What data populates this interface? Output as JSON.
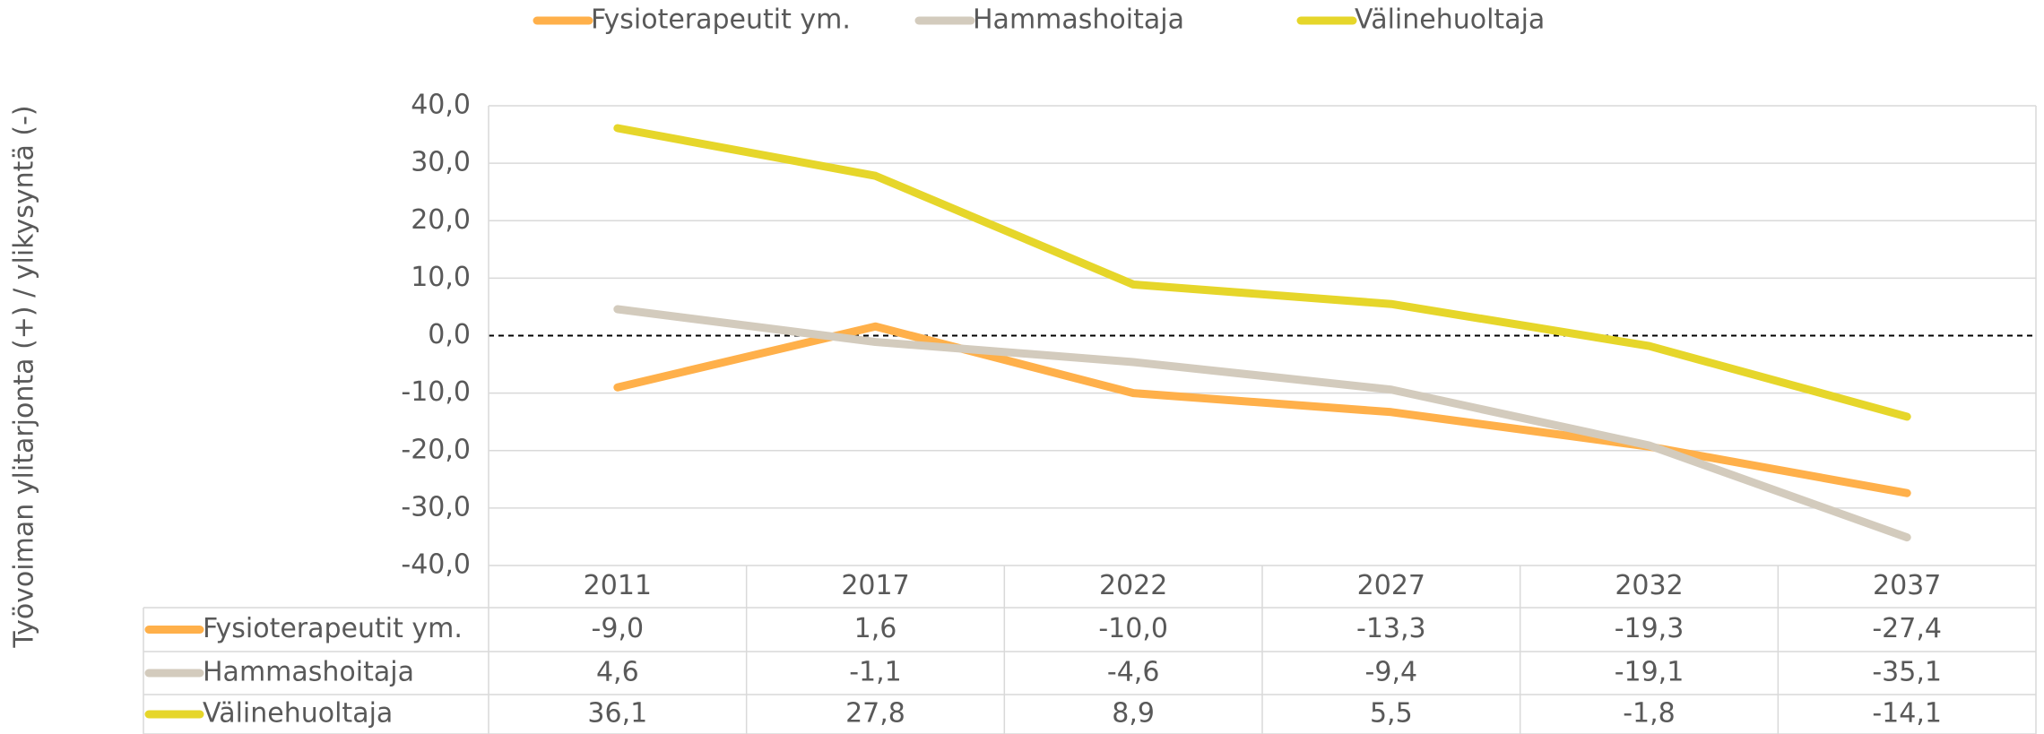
{
  "chart_data": {
    "type": "line",
    "y_label": "Työvoiman ylitarjonta (+) / ylikysyntä (-)",
    "categories": [
      "2011",
      "2017",
      "2022",
      "2027",
      "2032",
      "2037"
    ],
    "series": [
      {
        "name": "Fysioterapeutit ym.",
        "color": "#ffb04a",
        "values": [
          -9.0,
          1.6,
          -10.0,
          -13.3,
          -19.3,
          -27.4
        ],
        "value_labels": [
          "-9,0",
          "1,6",
          "-10,0",
          "-13,3",
          "-19,3",
          "-27,4"
        ]
      },
      {
        "name": "Hammashoitaja",
        "color": "#d3cbbd",
        "values": [
          4.6,
          -1.1,
          -4.6,
          -9.4,
          -19.1,
          -35.1
        ],
        "value_labels": [
          "4,6",
          "-1,1",
          "-4,6",
          "-9,4",
          "-19,1",
          "-35,1"
        ]
      },
      {
        "name": "Välinehuoltaja",
        "color": "#e6d62a",
        "values": [
          36.1,
          27.8,
          8.9,
          5.5,
          -1.8,
          -14.1
        ],
        "value_labels": [
          "36,1",
          "27,8",
          "8,9",
          "5,5",
          "-1,8",
          "-14,1"
        ]
      }
    ],
    "ylim": [
      -40,
      40
    ],
    "yticks": [
      {
        "value": -40,
        "label": "-40,0"
      },
      {
        "value": -30,
        "label": "-30,0"
      },
      {
        "value": -20,
        "label": "-20,0"
      },
      {
        "value": -10,
        "label": "-10,0"
      },
      {
        "value": 0,
        "label": "0,0"
      },
      {
        "value": 10,
        "label": "10,0"
      },
      {
        "value": 20,
        "label": "20,0"
      },
      {
        "value": 30,
        "label": "30,0"
      },
      {
        "value": 40,
        "label": "40,0"
      }
    ],
    "grid": true,
    "legend": "top"
  }
}
